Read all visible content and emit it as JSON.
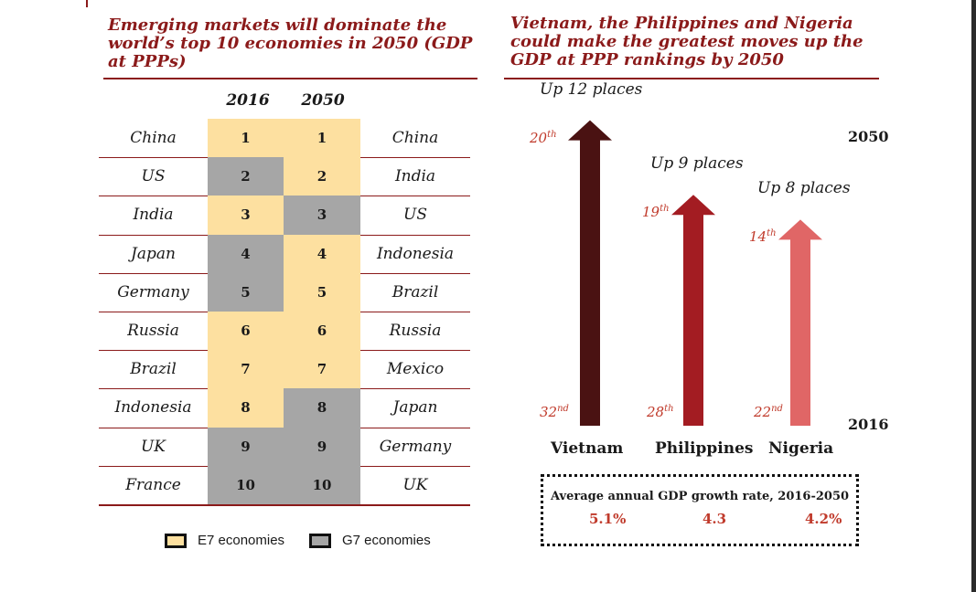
{
  "left": {
    "title": "Emerging markets will dominate the world’s top 10 economies in 2050 (GDP at PPPs)",
    "year_2016": "2016",
    "year_2050": "2050",
    "rows": [
      {
        "left": "China",
        "rank2016": "1",
        "rank2050": "1",
        "right": "China"
      },
      {
        "left": "US",
        "rank2016": "2",
        "rank2050": "2",
        "right": "India"
      },
      {
        "left": "India",
        "rank2016": "3",
        "rank2050": "3",
        "right": "US"
      },
      {
        "left": "Japan",
        "rank2016": "4",
        "rank2050": "4",
        "right": "Indonesia"
      },
      {
        "left": "Germany",
        "rank2016": "5",
        "rank2050": "5",
        "right": "Brazil"
      },
      {
        "left": "Russia",
        "rank2016": "6",
        "rank2050": "6",
        "right": "Russia"
      },
      {
        "left": "Brazil",
        "rank2016": "7",
        "rank2050": "7",
        "right": "Mexico"
      },
      {
        "left": "Indonesia",
        "rank2016": "8",
        "rank2050": "8",
        "right": "Japan"
      },
      {
        "left": "UK",
        "rank2016": "9",
        "rank2050": "9",
        "right": "Germany"
      },
      {
        "left": "France",
        "rank2016": "10",
        "rank2050": "10",
        "right": "UK"
      }
    ],
    "legend": {
      "e7": "E7 economies",
      "g7": "G7 economies"
    },
    "colors": {
      "e7": "#fde0a0",
      "g7": "#a6a6a6"
    }
  },
  "right": {
    "title": "Vietnam, the Philippines and Nigeria could make the greatest moves up the GDP at PPP rankings by 2050",
    "year_top": "2050",
    "year_bottom": "2016",
    "growth_title": "Average annual GDP growth rate, 2016-2050"
  },
  "chart_data": [
    {
      "type": "table",
      "title": "Emerging markets will dominate the world’s top 10 economies in 2050 (GDP at PPPs)",
      "columns": [
        "2016",
        "2050"
      ],
      "rank_2016": [
        "China",
        "US",
        "India",
        "Japan",
        "Germany",
        "Russia",
        "Brazil",
        "Indonesia",
        "UK",
        "France"
      ],
      "rank_2050": [
        "China",
        "India",
        "US",
        "Indonesia",
        "Brazil",
        "Russia",
        "Mexico",
        "Japan",
        "Germany",
        "UK"
      ],
      "group_2016": [
        "E7",
        "G7",
        "E7",
        "G7",
        "G7",
        "E7",
        "E7",
        "E7",
        "G7",
        "G7"
      ],
      "group_2050": [
        "E7",
        "E7",
        "G7",
        "E7",
        "E7",
        "E7",
        "E7",
        "G7",
        "G7",
        "G7"
      ]
    },
    {
      "type": "bar",
      "title": "Vietnam, the Philippines and Nigeria could make the greatest moves up the GDP at PPP rankings by 2050",
      "categories": [
        "Vietnam",
        "Philippines",
        "Nigeria"
      ],
      "rank_2016": [
        32,
        28,
        22
      ],
      "rank_2050": [
        20,
        19,
        14
      ],
      "rank_2016_labels": [
        "32nd",
        "28th",
        "22nd"
      ],
      "rank_2050_labels": [
        "20th",
        "19th",
        "14th"
      ],
      "places_up": [
        12,
        9,
        8
      ],
      "places_up_labels": [
        "Up 12 places",
        "Up 9 places",
        "Up 8 places"
      ],
      "growth_rate_labels": [
        "5.1%",
        "4.3",
        "4.2%"
      ],
      "colors": [
        "#4a1212",
        "#a31c22",
        "#e06666"
      ]
    }
  ]
}
